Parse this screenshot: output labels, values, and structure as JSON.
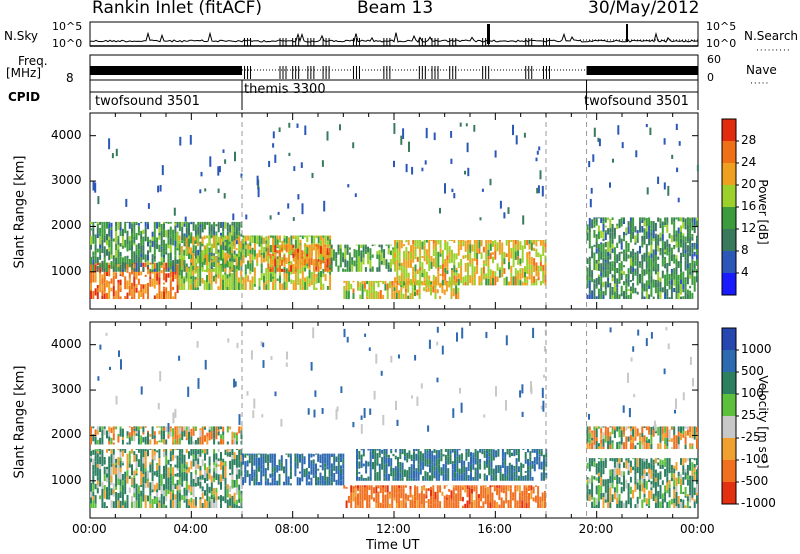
{
  "header": {
    "station": "Rankin Inlet (fitACF)",
    "beam": "Beam 13",
    "date": "30/May/2012"
  },
  "strips": {
    "nsky_label": "N.Sky",
    "nsky_ticks": [
      "10^5",
      "10^0"
    ],
    "nsearch_label": "N.Search",
    "nsearch_ticks": [
      "10^5",
      "10^0"
    ],
    "freq_label_1": "Freq.",
    "freq_label_2": "[MHz]",
    "freq_ticks": [
      "8"
    ],
    "nave_label": "Nave",
    "nave_ticks": [
      "60",
      "0"
    ],
    "cpid_label": "CPID"
  },
  "cpid_segments": [
    {
      "name": "twofsound 3501",
      "start_hour": 0,
      "end_hour": 6
    },
    {
      "name": "themis 3300",
      "start_hour": 6,
      "end_hour": 19.6
    },
    {
      "name": "twofsound 3501",
      "start_hour": 19.6,
      "end_hour": 24
    }
  ],
  "panels": {
    "slant_range_label": "Slant Range [km]",
    "x_axis_label": "Time UT",
    "x_ticks": [
      "00:00",
      "04:00",
      "08:00",
      "12:00",
      "16:00",
      "20:00",
      "00:00"
    ],
    "y_ticks": [
      "1000",
      "2000",
      "3000",
      "4000"
    ],
    "power_label": "Power [dB]",
    "power_ticks": [
      "4",
      "8",
      "12",
      "16",
      "20",
      "24",
      "28"
    ],
    "velocity_label": "Velocity [m s⁻¹]",
    "velocity_ticks": [
      "1000",
      "500",
      "100",
      "25",
      "-25",
      "-100",
      "-500",
      "-1000"
    ]
  },
  "colors": {
    "power_scale": [
      "#1a1aff",
      "#2b57b8",
      "#3a7a5c",
      "#3c9b3c",
      "#9bd12a",
      "#f0a020",
      "#f07018",
      "#e22c10"
    ],
    "velocity_scale": [
      "#2747b0",
      "#2e6ab0",
      "#2c8060",
      "#5cc03c",
      "#c8c8c8",
      "#f0a030",
      "#f07020",
      "#e23010"
    ]
  },
  "chart_data": [
    {
      "type": "heatmap",
      "title": "Power",
      "x_range_hours": [
        0,
        24
      ],
      "y_range_km": [
        180,
        4500
      ],
      "colorbar": {
        "label": "Power [dB]",
        "min": 0,
        "max": 32,
        "ticks": [
          4,
          8,
          12,
          16,
          20,
          24,
          28
        ]
      },
      "echo_bands": [
        {
          "t_start": 0.0,
          "t_end": 3.5,
          "r_min": 400,
          "r_max": 1200,
          "value": 26
        },
        {
          "t_start": 0.0,
          "t_end": 6.0,
          "r_min": 1000,
          "r_max": 2100,
          "value": 12
        },
        {
          "t_start": 3.5,
          "t_end": 9.5,
          "r_min": 600,
          "r_max": 1800,
          "value": 18
        },
        {
          "t_start": 7.0,
          "t_end": 9.5,
          "r_min": 1000,
          "r_max": 1600,
          "value": 24
        },
        {
          "t_start": 9.5,
          "t_end": 12.0,
          "r_min": 1000,
          "r_max": 1600,
          "value": 14
        },
        {
          "t_start": 10.0,
          "t_end": 14.5,
          "r_min": 400,
          "r_max": 800,
          "value": 20
        },
        {
          "t_start": 12.0,
          "t_end": 18.0,
          "r_min": 700,
          "r_max": 1700,
          "value": 20
        },
        {
          "t_start": 19.6,
          "t_end": 24.0,
          "r_min": 400,
          "r_max": 2200,
          "value": 12
        }
      ]
    },
    {
      "type": "heatmap",
      "title": "Velocity",
      "x_range_hours": [
        0,
        24
      ],
      "y_range_km": [
        180,
        4500
      ],
      "colorbar": {
        "label": "Velocity [m s⁻¹]",
        "min": -1000,
        "max": 1000,
        "ticks": [
          1000,
          500,
          100,
          25,
          -25,
          -100,
          -500,
          -1000
        ]
      },
      "echo_bands": [
        {
          "t_start": 0.0,
          "t_end": 6.0,
          "r_min": 400,
          "r_max": 1700,
          "value": 150
        },
        {
          "t_start": 0.0,
          "t_end": 6.0,
          "r_min": 1800,
          "r_max": 2200,
          "value": 0
        },
        {
          "t_start": 6.0,
          "t_end": 10.0,
          "r_min": 900,
          "r_max": 1600,
          "value": 600
        },
        {
          "t_start": 10.0,
          "t_end": 18.0,
          "r_min": 400,
          "r_max": 900,
          "value": -300
        },
        {
          "t_start": 10.5,
          "t_end": 18.0,
          "r_min": 1000,
          "r_max": 1700,
          "value": 500
        },
        {
          "t_start": 19.6,
          "t_end": 24.0,
          "r_min": 1700,
          "r_max": 2200,
          "value": 0
        },
        {
          "t_start": 19.6,
          "t_end": 24.0,
          "r_min": 400,
          "r_max": 1500,
          "value": 150
        }
      ]
    }
  ]
}
